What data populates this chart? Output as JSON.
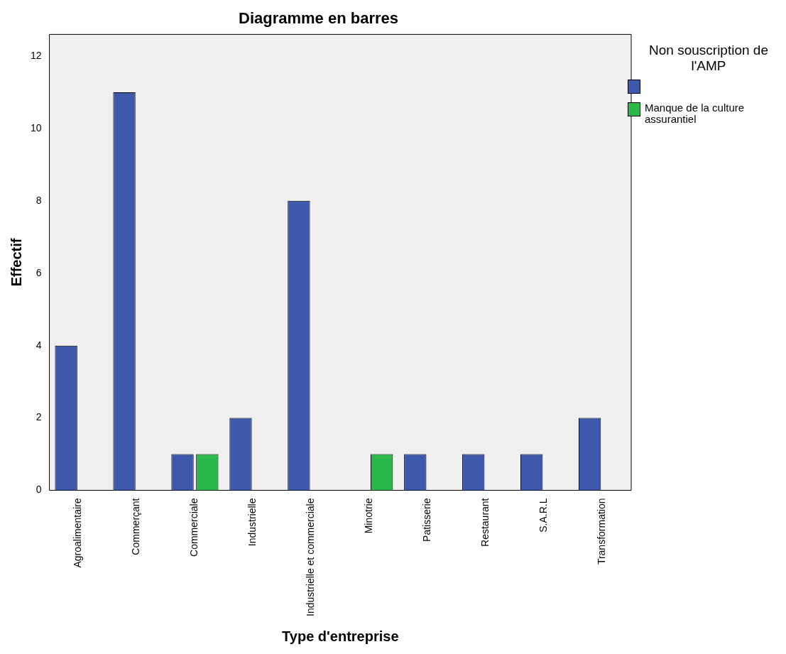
{
  "chart_data": {
    "type": "bar",
    "title": "Diagramme en barres",
    "xlabel": "Type d'entreprise",
    "ylabel": "Effectif",
    "legend_title": "Non souscription de l'AMP",
    "legend": "top right",
    "grid": false,
    "categories": [
      "Agroalimentaire",
      "Commerçant",
      "Commerciale",
      "Industrielle",
      "Industrielle et commerciale",
      "Minotrie",
      "Patisserie",
      "Restaurant",
      "S.A.R.L",
      "Transformation"
    ],
    "series": [
      {
        "color": "#3e58ac",
        "values": [
          4,
          11,
          1,
          2,
          8,
          null,
          1,
          1,
          1,
          2
        ]
      },
      {
        "name": "Manque de la culture assurantiel",
        "color": "#2bb84b",
        "values": [
          null,
          null,
          1,
          null,
          null,
          1,
          null,
          null,
          null,
          null
        ]
      }
    ],
    "ylim": [
      0,
      12.6
    ],
    "yticks": [
      0,
      2,
      4,
      6,
      8,
      10,
      12
    ]
  }
}
